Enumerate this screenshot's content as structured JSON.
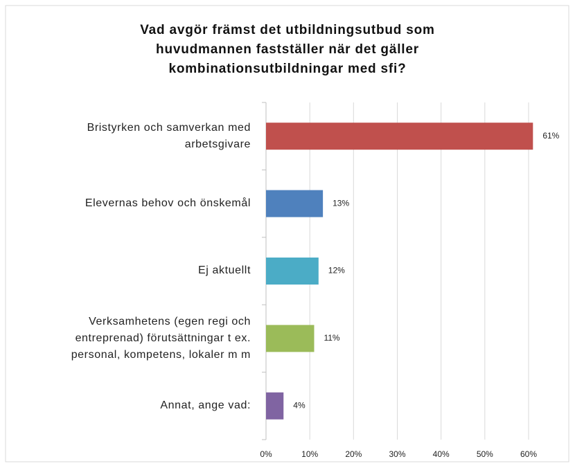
{
  "chart_data": {
    "type": "bar",
    "orientation": "horizontal",
    "title": "Vad avgör främst det utbildningsutbud som\nhuvudmannen fastställer när det gäller\nkombinationsutbildningar med sfi?",
    "categories": [
      "Bristyrken och samverkan med\narbetsgivare",
      "Elevernas behov och önskemål",
      "Ej aktuellt",
      "Verksamhetens (egen regi och\nentreprenad) förutsättningar t ex.\npersonal, kompetens, lokaler m m",
      "Annat, ange vad:"
    ],
    "values": [
      61,
      13,
      12,
      11,
      4
    ],
    "value_labels": [
      "61%",
      "13%",
      "12%",
      "11%",
      "4%"
    ],
    "colors": [
      "#c0504d",
      "#4f81bd",
      "#4bacc6",
      "#9bbb59",
      "#8064a2"
    ],
    "xlim": [
      0,
      60
    ],
    "xticks": [
      {
        "value": 0,
        "label": "0%"
      },
      {
        "value": 10,
        "label": "10%"
      },
      {
        "value": 20,
        "label": "20%"
      },
      {
        "value": 30,
        "label": "30%"
      },
      {
        "value": 40,
        "label": "40%"
      },
      {
        "value": 50,
        "label": "50%"
      },
      {
        "value": 60,
        "label": "60%"
      }
    ],
    "grid": true
  }
}
